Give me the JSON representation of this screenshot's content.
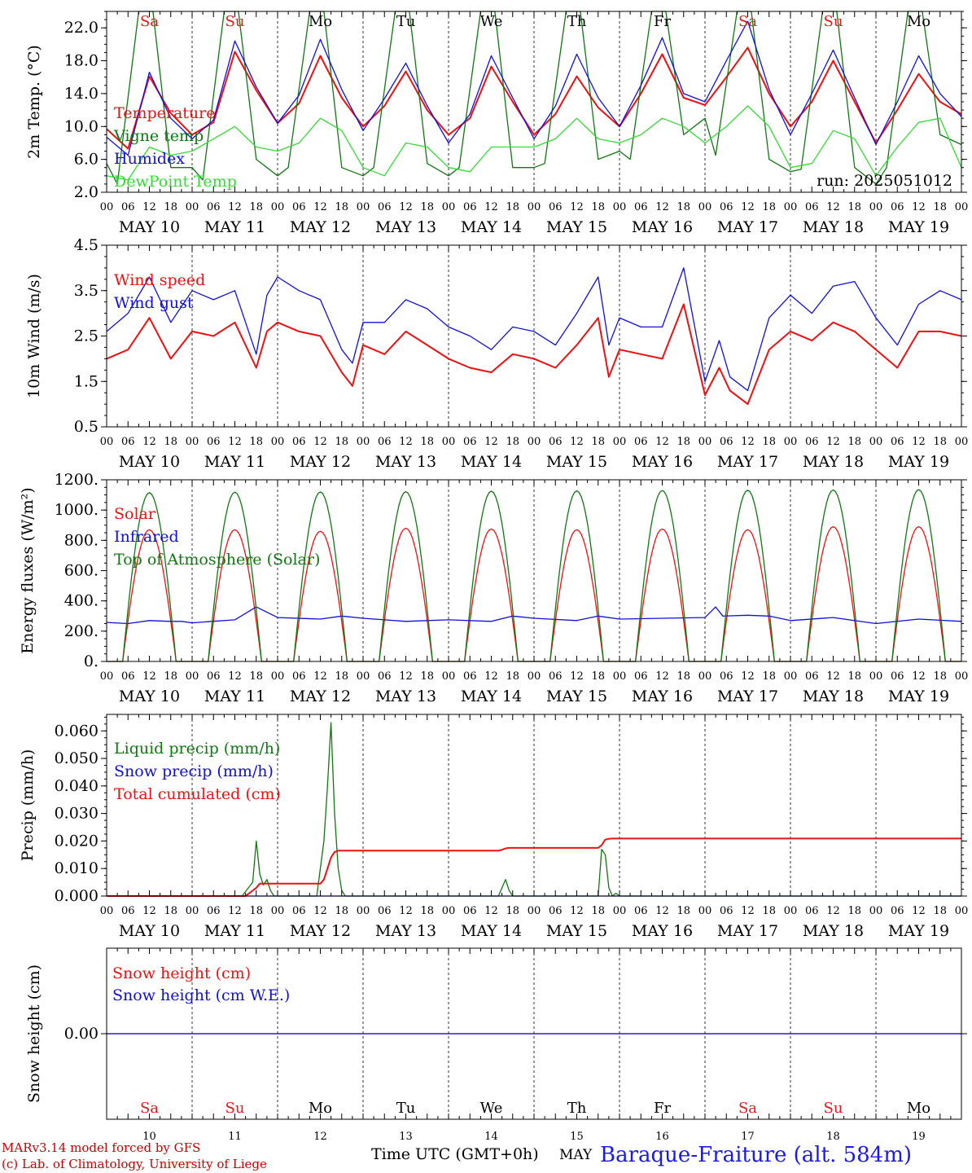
{
  "footer": {
    "model": "MARv3.14 model forced by GFS",
    "lab": "(c) Lab. of Climatology, University of Liege",
    "axis_title": "Time UTC (GMT+0h)",
    "month_word": "MAY",
    "station": "Baraque-Fraiture (alt. 584m)"
  },
  "run_label": "run: 2025051012",
  "days": {
    "dates": [
      "MAY 10",
      "MAY 11",
      "MAY 12",
      "MAY 13",
      "MAY 14",
      "MAY 15",
      "MAY 16",
      "MAY 17",
      "MAY 18",
      "MAY 19"
    ],
    "weekdays": [
      "Sa",
      "Su",
      "Mo",
      "Tu",
      "We",
      "Th",
      "Fr",
      "Sa",
      "Su",
      "Mo"
    ],
    "day_numbers": [
      "10",
      "11",
      "12",
      "13",
      "14",
      "15",
      "16",
      "17",
      "18",
      "19"
    ],
    "hour_labels": [
      "00",
      "06",
      "12",
      "18"
    ],
    "final_hour_label": "00"
  },
  "colors": {
    "weekend": "#e41a1c",
    "weekday": "#000000",
    "red": "#ee1111",
    "blue": "#1010dd",
    "green": "#117711",
    "lightgreen": "#33dd33",
    "station": "#1a1aee",
    "footer_red": "#cc0000"
  },
  "chart_data": [
    {
      "id": "temp",
      "type": "line",
      "ylabel": "2m Temp. (°C)",
      "ylim": [
        2,
        24
      ],
      "yticks": [
        2,
        6,
        10,
        14,
        18,
        22
      ],
      "ytick_labels": [
        "2.0",
        "6.0",
        "10.0",
        "14.0",
        "18.0",
        "22.0"
      ],
      "legend_placement": "left",
      "x_unit": "hours since 2025-05-10 00 UTC",
      "series": [
        {
          "name": "Temperature",
          "color": "#ee1111",
          "x": [
            0,
            6,
            12,
            18,
            24,
            30,
            36,
            42,
            48,
            54,
            60,
            66,
            72,
            78,
            84,
            90,
            96,
            102,
            108,
            114,
            120,
            126,
            132,
            138,
            144,
            150,
            156,
            162,
            168,
            174,
            180,
            186,
            192,
            198,
            204,
            210,
            216,
            222,
            228,
            234,
            240
          ],
          "y": [
            9.7,
            7.3,
            16.1,
            11.6,
            9.0,
            10.5,
            19.1,
            14.4,
            10.4,
            12.8,
            18.6,
            13.5,
            10.0,
            12.5,
            16.7,
            12.0,
            9.0,
            11.0,
            17.3,
            13.0,
            9.0,
            11.5,
            16.1,
            12.3,
            10.0,
            14.0,
            18.8,
            13.5,
            12.6,
            16.0,
            19.6,
            14.0,
            10.0,
            13.0,
            18.0,
            13.0,
            8.0,
            12.0,
            16.4,
            13.0,
            11.5
          ]
        },
        {
          "name": "Vigne temp",
          "color": "#117711",
          "x": [
            0,
            3,
            9,
            13,
            18,
            24,
            27,
            33,
            37,
            42,
            48,
            51,
            57,
            61,
            66,
            72,
            75,
            81,
            85,
            90,
            96,
            99,
            105,
            109,
            114,
            120,
            123,
            129,
            133,
            138,
            144,
            147,
            153,
            157,
            162,
            168,
            171,
            177,
            181,
            186,
            192,
            195,
            201,
            205,
            210,
            216,
            219,
            225,
            229,
            234,
            240
          ],
          "y": [
            5.5,
            3.0,
            24,
            24,
            5.0,
            5.0,
            3.5,
            24,
            24,
            6.0,
            4.0,
            5.0,
            24,
            24,
            5.0,
            4.0,
            5.0,
            24,
            24,
            5.5,
            4.0,
            5.0,
            24,
            24,
            5.0,
            5.0,
            5.5,
            24,
            24,
            6.0,
            7.0,
            6.0,
            24,
            24,
            9.0,
            11.0,
            6.5,
            24,
            24,
            6.0,
            4.5,
            4.8,
            24,
            24,
            5.0,
            3.0,
            5.0,
            24,
            24,
            9.0,
            7.8
          ]
        },
        {
          "name": "Humidex",
          "color": "#1010dd",
          "x": [
            0,
            6,
            12,
            18,
            24,
            30,
            36,
            42,
            48,
            54,
            60,
            66,
            72,
            78,
            84,
            90,
            96,
            102,
            108,
            114,
            120,
            126,
            132,
            138,
            144,
            150,
            156,
            162,
            168,
            174,
            180,
            186,
            192,
            198,
            204,
            210,
            216,
            222,
            228,
            234,
            240
          ],
          "y": [
            8.7,
            6.5,
            16.6,
            11.0,
            8.5,
            10.8,
            20.4,
            14.8,
            10.4,
            13.8,
            20.6,
            14.5,
            9.5,
            13.4,
            17.7,
            12.5,
            8.0,
            11.5,
            18.6,
            13.5,
            8.5,
            12.5,
            18.8,
            13.5,
            10.0,
            15.0,
            20.8,
            14.0,
            13.0,
            18.0,
            22.8,
            14.5,
            9.0,
            14.0,
            19.3,
            13.5,
            7.8,
            13.0,
            18.6,
            14.0,
            11.2
          ]
        },
        {
          "name": "DewPoint Temp",
          "color": "#33dd33",
          "x": [
            0,
            6,
            12,
            18,
            24,
            30,
            36,
            42,
            48,
            54,
            60,
            66,
            72,
            78,
            84,
            90,
            96,
            102,
            108,
            114,
            120,
            126,
            132,
            138,
            144,
            150,
            156,
            162,
            168,
            174,
            180,
            186,
            192,
            198,
            204,
            210,
            216,
            222,
            228,
            234,
            240
          ],
          "y": [
            4.0,
            3.5,
            7.5,
            6.5,
            7.0,
            8.5,
            10.0,
            7.5,
            7.0,
            8.0,
            11.0,
            9.5,
            5.0,
            4.0,
            8.0,
            7.5,
            5.0,
            4.5,
            7.5,
            7.5,
            7.5,
            8.5,
            11.0,
            8.5,
            8.0,
            9.0,
            11.0,
            10.0,
            8.0,
            10.0,
            12.5,
            10.0,
            5.0,
            5.5,
            9.5,
            8.5,
            4.0,
            7.5,
            10.5,
            11.0,
            5.0
          ]
        }
      ]
    },
    {
      "id": "wind",
      "type": "line",
      "ylabel": "10m Wind (m/s)",
      "ylim": [
        0.5,
        4.5
      ],
      "yticks": [
        0.5,
        1.5,
        2.5,
        3.5,
        4.5
      ],
      "ytick_labels": [
        "0.5",
        "1.5",
        "2.5",
        "3.5",
        "4.5"
      ],
      "legend_placement": "top-left",
      "series": [
        {
          "name": "Wind speed",
          "color": "#ee1111",
          "x": [
            0,
            6,
            12,
            18,
            24,
            30,
            36,
            42,
            45,
            48,
            54,
            60,
            66,
            69,
            72,
            78,
            84,
            90,
            96,
            102,
            108,
            114,
            120,
            126,
            132,
            138,
            141,
            144,
            150,
            156,
            162,
            168,
            172,
            175,
            180,
            186,
            192,
            198,
            204,
            210,
            216,
            222,
            228,
            234,
            240
          ],
          "y": [
            2.0,
            2.2,
            2.9,
            2.0,
            2.6,
            2.5,
            2.8,
            1.8,
            2.6,
            2.8,
            2.6,
            2.5,
            1.7,
            1.4,
            2.3,
            2.1,
            2.6,
            2.3,
            2.0,
            1.8,
            1.7,
            2.1,
            2.0,
            1.8,
            2.3,
            2.9,
            1.6,
            2.2,
            2.1,
            2.0,
            3.2,
            1.2,
            1.8,
            1.3,
            1.0,
            2.2,
            2.6,
            2.4,
            2.8,
            2.6,
            2.2,
            1.8,
            2.6,
            2.6,
            2.5
          ]
        },
        {
          "name": "Wind gust",
          "color": "#1010dd",
          "x": [
            0,
            6,
            12,
            18,
            24,
            30,
            36,
            42,
            45,
            48,
            54,
            60,
            66,
            69,
            72,
            78,
            84,
            90,
            96,
            102,
            108,
            114,
            120,
            126,
            132,
            138,
            141,
            144,
            150,
            156,
            162,
            168,
            172,
            175,
            180,
            186,
            192,
            198,
            204,
            210,
            216,
            222,
            228,
            234,
            240
          ],
          "y": [
            2.6,
            3.0,
            3.8,
            2.8,
            3.5,
            3.3,
            3.5,
            2.1,
            3.4,
            3.8,
            3.5,
            3.3,
            2.2,
            1.9,
            2.8,
            2.8,
            3.3,
            3.1,
            2.7,
            2.5,
            2.2,
            2.7,
            2.6,
            2.3,
            3.0,
            3.8,
            2.3,
            2.9,
            2.7,
            2.7,
            4.0,
            1.5,
            2.4,
            1.6,
            1.3,
            2.9,
            3.4,
            3.0,
            3.6,
            3.7,
            2.9,
            2.3,
            3.2,
            3.5,
            3.3
          ]
        }
      ]
    },
    {
      "id": "energy",
      "type": "line",
      "ylabel": "Energy fluxes (W/m²)",
      "ylim": [
        0,
        1200
      ],
      "yticks": [
        0,
        200,
        400,
        600,
        800,
        1000,
        1200
      ],
      "ytick_labels": [
        "0.",
        "200.",
        "400.",
        "600.",
        "800.",
        "1000.",
        "1200."
      ],
      "legend_placement": "top-left",
      "diurnal": {
        "sunrise_hour": 4.5,
        "sunset_hour": 19.5
      },
      "series": [
        {
          "name": "Solar",
          "color": "#ee1111",
          "daily_peaks": [
            870,
            870,
            860,
            880,
            875,
            870,
            875,
            870,
            890,
            890
          ]
        },
        {
          "name": "Infrared",
          "color": "#1010dd",
          "x": [
            0,
            6,
            12,
            18,
            21,
            24,
            36,
            42,
            48,
            60,
            66,
            72,
            84,
            96,
            108,
            114,
            120,
            132,
            138,
            144,
            156,
            168,
            171,
            173,
            180,
            186,
            192,
            204,
            216,
            228,
            240
          ],
          "y": [
            258,
            250,
            270,
            265,
            265,
            255,
            275,
            360,
            290,
            280,
            300,
            285,
            265,
            275,
            265,
            300,
            285,
            270,
            300,
            280,
            285,
            290,
            360,
            300,
            305,
            300,
            270,
            290,
            250,
            280,
            265
          ]
        },
        {
          "name": "Top of Atmosphere (Solar)",
          "color": "#117711",
          "daily_peaks": [
            1115,
            1118,
            1120,
            1122,
            1125,
            1127,
            1129,
            1131,
            1133,
            1135
          ]
        }
      ]
    },
    {
      "id": "precip",
      "type": "line",
      "ylabel": "Precip (mm/h)",
      "ylim": [
        0,
        0.066
      ],
      "yticks": [
        0,
        0.01,
        0.02,
        0.03,
        0.04,
        0.05,
        0.06
      ],
      "ytick_labels": [
        "0.000",
        "0.010",
        "0.020",
        "0.030",
        "0.040",
        "0.050",
        "0.060"
      ],
      "legend_placement": "top-left",
      "series": [
        {
          "name": "Liquid precip (mm/h)",
          "color": "#117711",
          "x": [
            0,
            38,
            41,
            42,
            43,
            44,
            45,
            46,
            47,
            59,
            61,
            62,
            63,
            64,
            65,
            66,
            67,
            110,
            112,
            113,
            114,
            138,
            139,
            140,
            141,
            142,
            143,
            144,
            240
          ],
          "y": [
            0,
            0,
            0.005,
            0.02,
            0.008,
            0.004,
            0.006,
            0.002,
            0,
            0,
            0.02,
            0.04,
            0.063,
            0.03,
            0.01,
            0.002,
            0,
            0,
            0.006,
            0.002,
            0,
            0,
            0.017,
            0.015,
            0.003,
            0,
            0.001,
            0,
            0
          ]
        },
        {
          "name": "Snow precip (mm/h)",
          "color": "#1010dd",
          "x": [
            0,
            240
          ],
          "y": [
            0,
            0
          ]
        },
        {
          "name": "Total cumulated (cm)",
          "color": "#ee1111",
          "x": [
            0,
            39,
            42,
            43,
            44,
            60,
            61,
            62,
            63,
            64,
            65,
            66,
            110,
            111,
            112,
            113,
            138,
            139,
            140,
            141,
            142,
            240
          ],
          "y": [
            0,
            0,
            0.003,
            0.0045,
            0.0045,
            0.0045,
            0.006,
            0.01,
            0.014,
            0.016,
            0.0165,
            0.0165,
            0.0165,
            0.0168,
            0.0173,
            0.0175,
            0.0175,
            0.0185,
            0.0205,
            0.0208,
            0.0209,
            0.0209
          ]
        }
      ]
    },
    {
      "id": "snow",
      "type": "line",
      "ylabel": "Snow height (cm)",
      "yticks": [
        0
      ],
      "ytick_labels": [
        "0.00"
      ],
      "legend_placement": "top-left",
      "series": [
        {
          "name": "Snow height (cm)",
          "color": "#ee1111",
          "x": [
            0,
            240
          ],
          "y": [
            0,
            0
          ]
        },
        {
          "name": "Snow height (cm W.E.)",
          "color": "#1010dd",
          "x": [
            0,
            240
          ],
          "y": [
            0,
            0
          ]
        }
      ]
    }
  ]
}
